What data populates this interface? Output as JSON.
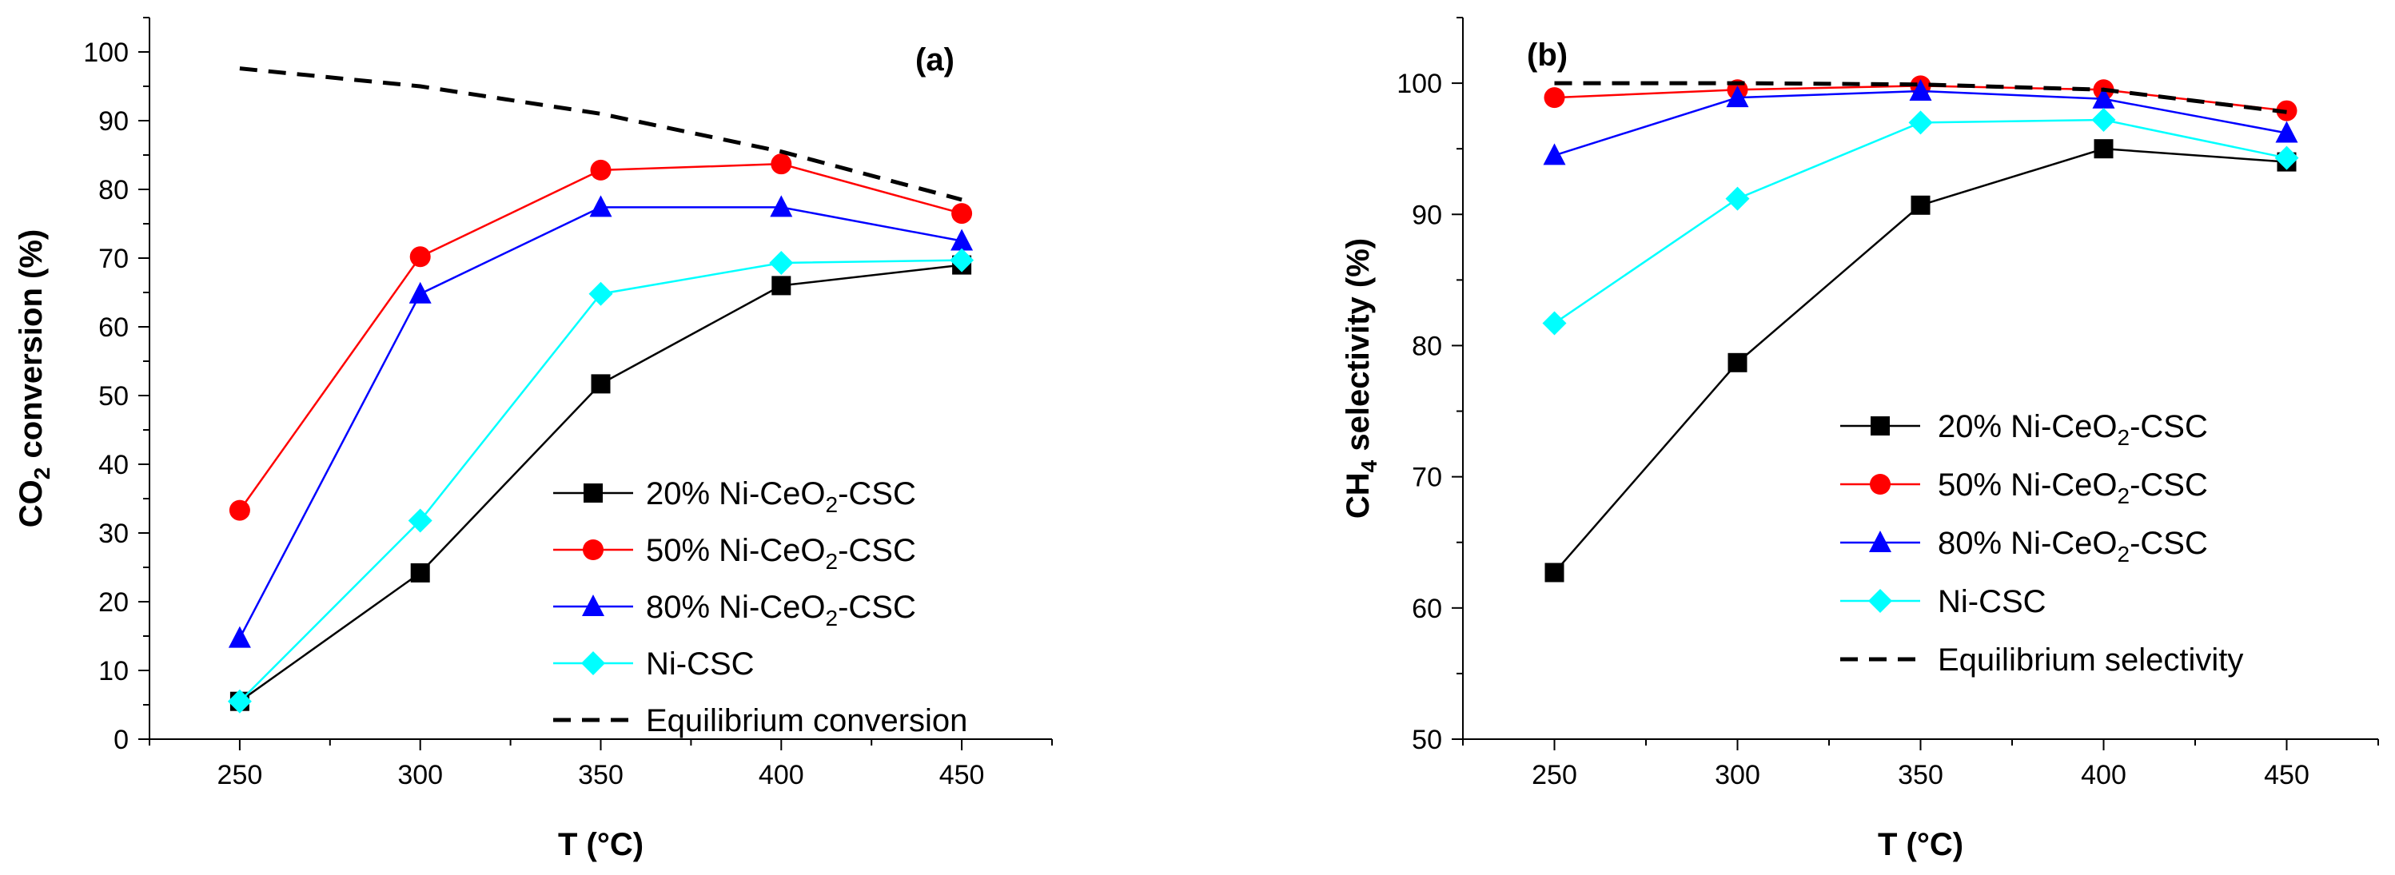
{
  "chart_data": [
    {
      "type": "line",
      "panel": "(a)",
      "xlabel": "T (°C)",
      "ylabel": {
        "main": "CO",
        "sub": "2",
        "rest": " conversion (%)"
      },
      "xlim": [
        225,
        475
      ],
      "ylim": [
        0,
        105
      ],
      "xticks": [
        250,
        300,
        350,
        400,
        450
      ],
      "yticks": [
        0,
        10,
        20,
        30,
        40,
        50,
        60,
        70,
        80,
        90,
        100
      ],
      "legend_position": "bottom-right",
      "x": [
        250,
        300,
        350,
        400,
        450
      ],
      "series": [
        {
          "name": "20% Ni-CeO2-CSC",
          "label": {
            "pre": "20% Ni-CeO",
            "sub": "2",
            "post": "-CSC"
          },
          "color": "#000000",
          "marker": "square",
          "values": [
            5.5,
            24.2,
            51.7,
            66.0,
            69.0
          ]
        },
        {
          "name": "50% Ni-CeO2-CSC",
          "label": {
            "pre": "50% Ni-CeO",
            "sub": "2",
            "post": "-CSC"
          },
          "color": "#ff0000",
          "marker": "circle",
          "values": [
            33.3,
            70.2,
            82.8,
            83.7,
            76.5
          ]
        },
        {
          "name": "80% Ni-CeO2-CSC",
          "label": {
            "pre": "80% Ni-CeO",
            "sub": "2",
            "post": "-CSC"
          },
          "color": "#0000ff",
          "marker": "triangle",
          "values": [
            14.7,
            64.8,
            77.4,
            77.4,
            72.5
          ]
        },
        {
          "name": "Ni-CSC",
          "label": {
            "pre": "Ni-CSC",
            "sub": "",
            "post": ""
          },
          "color": "#00ffff",
          "marker": "diamond",
          "values": [
            5.5,
            31.8,
            64.8,
            69.3,
            69.7
          ]
        },
        {
          "name": "Equilibrium conversion",
          "label": {
            "pre": "Equilibrium conversion",
            "sub": "",
            "post": ""
          },
          "color": "#000000",
          "marker": "none",
          "dashed": true,
          "values": [
            97.6,
            95.0,
            91.0,
            85.5,
            78.5
          ]
        }
      ]
    },
    {
      "type": "line",
      "panel": "(b)",
      "xlabel": "T (°C)",
      "ylabel": {
        "main": "CH",
        "sub": "4",
        "rest": " selectivity (%)"
      },
      "xlim": [
        225,
        475
      ],
      "ylim": [
        50,
        105
      ],
      "xticks": [
        250,
        300,
        350,
        400,
        450
      ],
      "yticks": [
        50,
        60,
        70,
        80,
        90,
        100
      ],
      "legend_position": "bottom-right",
      "x": [
        250,
        300,
        350,
        400,
        450
      ],
      "series": [
        {
          "name": "20% Ni-CeO2-CSC",
          "label": {
            "pre": "20% Ni-CeO",
            "sub": "2",
            "post": "-CSC"
          },
          "color": "#000000",
          "marker": "square",
          "values": [
            62.7,
            78.7,
            90.7,
            95.0,
            94.0
          ]
        },
        {
          "name": "50% Ni-CeO2-CSC",
          "label": {
            "pre": "50% Ni-CeO",
            "sub": "2",
            "post": "-CSC"
          },
          "color": "#ff0000",
          "marker": "circle",
          "values": [
            98.9,
            99.5,
            99.8,
            99.5,
            97.9
          ]
        },
        {
          "name": "80% Ni-CeO2-CSC",
          "label": {
            "pre": "80% Ni-CeO",
            "sub": "2",
            "post": "-CSC"
          },
          "color": "#0000ff",
          "marker": "triangle",
          "values": [
            94.5,
            98.9,
            99.4,
            98.8,
            96.2
          ]
        },
        {
          "name": "Ni-CSC",
          "label": {
            "pre": "Ni-CSC",
            "sub": "",
            "post": ""
          },
          "color": "#00ffff",
          "marker": "diamond",
          "values": [
            81.7,
            91.2,
            97.0,
            97.2,
            94.3
          ]
        },
        {
          "name": "Equilibrium selectivity",
          "label": {
            "pre": "Equilibrium selectivity",
            "sub": "",
            "post": ""
          },
          "color": "#000000",
          "marker": "none",
          "dashed": true,
          "values": [
            100.0,
            100.0,
            99.9,
            99.5,
            97.8
          ]
        }
      ]
    }
  ]
}
